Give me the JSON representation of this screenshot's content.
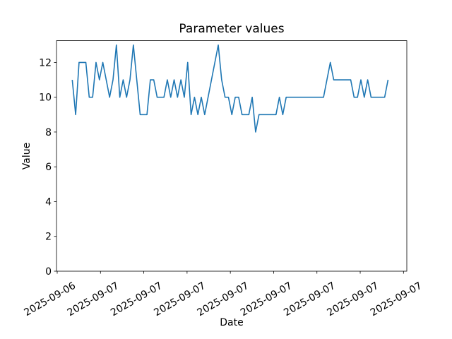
{
  "figure": {
    "background": "#ffffff",
    "text_color": "#000000",
    "spine_color": "#000000"
  },
  "chart_data": {
    "type": "line",
    "title": "Parameter values",
    "xlabel": "Date",
    "ylabel": "Value",
    "grid": false,
    "legend": "none",
    "ylim": [
      0,
      13.25
    ],
    "y_ticks": [
      0,
      2,
      4,
      6,
      8,
      10,
      12
    ],
    "x_tick_labels": [
      "2025-09-06",
      "2025-09-07",
      "2025-09-07",
      "2025-09-07",
      "2025-09-07",
      "2025-09-07",
      "2025-09-07",
      "2025-09-07",
      "2025-09-07"
    ],
    "series": [
      {
        "name": "Parameter values",
        "color": "#1f77b4",
        "values": [
          11,
          9,
          12,
          12,
          12,
          10,
          10,
          12,
          11,
          12,
          11,
          10,
          11,
          13,
          10,
          11,
          10,
          11,
          13,
          11,
          9,
          9,
          9,
          11,
          11,
          10,
          10,
          10,
          11,
          10,
          11,
          10,
          11,
          10,
          12,
          9,
          10,
          9,
          10,
          9,
          10,
          11,
          12,
          13,
          11,
          10,
          10,
          9,
          10,
          10,
          9,
          9,
          9,
          10,
          8,
          9,
          9,
          9,
          9,
          9,
          9,
          10,
          9,
          10,
          10,
          10,
          10,
          10,
          10,
          10,
          10,
          10,
          10,
          10,
          10,
          11,
          12,
          11,
          11,
          11,
          11,
          11,
          11,
          10,
          10,
          11,
          10,
          11,
          10,
          10,
          10,
          10,
          10,
          11
        ]
      }
    ]
  }
}
